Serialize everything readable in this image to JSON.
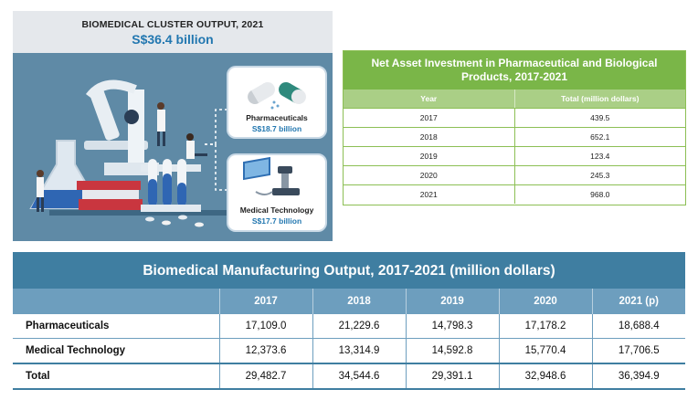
{
  "infographic": {
    "title": "BIOMEDICAL CLUSTER OUTPUT, 2021",
    "total_value": "S$36.4 billion",
    "pharma": {
      "label": "Pharmaceuticals",
      "value": "S$18.7 billion"
    },
    "medtech": {
      "label": "Medical Technology",
      "value": "S$17.7 billion"
    },
    "colors": {
      "header_bg": "#e5e8ec",
      "body_bg": "#5f8aa6",
      "value_text": "#2277b0"
    }
  },
  "net_asset_investment": {
    "title": "Net Asset Investment in Pharmaceutical and Biological Products, 2017-2021",
    "columns": [
      "Year",
      "Total (million dollars)"
    ],
    "rows": [
      [
        "2017",
        "439.5"
      ],
      [
        "2018",
        "652.1"
      ],
      [
        "2019",
        "123.4"
      ],
      [
        "2020",
        "245.3"
      ],
      [
        "2021",
        "968.0"
      ]
    ],
    "colors": {
      "title_bg": "#7ab648",
      "header_bg": "#aacf86"
    }
  },
  "biomedical_output": {
    "title": "Biomedical Manufacturing Output, 2017-2021 (million dollars)",
    "columns": [
      "",
      "2017",
      "2018",
      "2019",
      "2020",
      "2021 (p)"
    ],
    "rows": [
      [
        "Pharmaceuticals",
        "17,109.0",
        "21,229.6",
        "14,798.3",
        "17,178.2",
        "18,688.4"
      ],
      [
        "Medical Technology",
        "12,373.6",
        "13,314.9",
        "14,592.8",
        "15,770.4",
        "17,706.5"
      ],
      [
        "Total",
        "29,482.7",
        "34,544.6",
        "29,391.1",
        "32,948.6",
        "36,394.9"
      ]
    ],
    "colors": {
      "title_bg": "#3f7ea1",
      "header_bg": "#6d9ebe"
    }
  }
}
